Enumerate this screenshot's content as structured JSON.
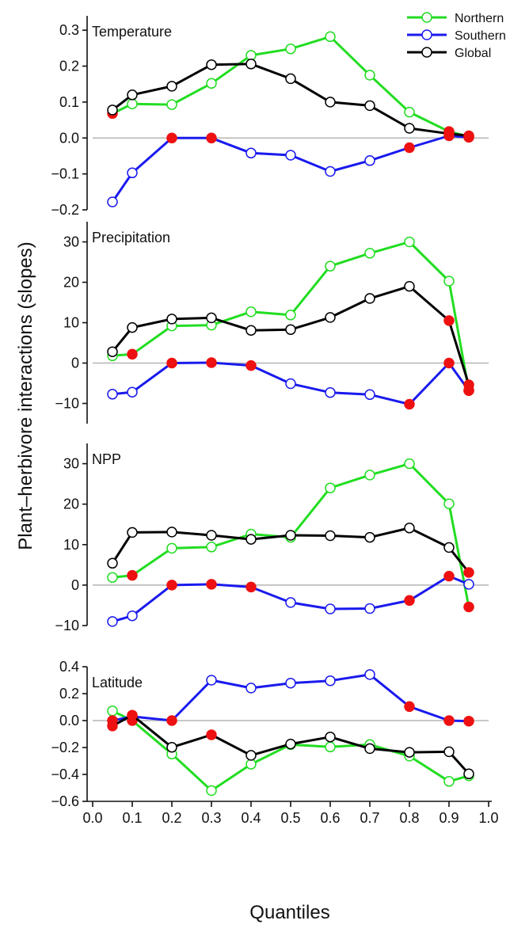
{
  "chart_data": {
    "type": "line",
    "xlabel": "Quantiles",
    "ylabel": "Plant–herbivore interactions (slopes)",
    "x": [
      0.05,
      0.1,
      0.2,
      0.3,
      0.4,
      0.5,
      0.6,
      0.7,
      0.8,
      0.9,
      0.95
    ],
    "xlim": [
      0.0,
      1.0
    ],
    "xticks": [
      "0.0",
      "0.1",
      "0.2",
      "0.3",
      "0.4",
      "0.5",
      "0.6",
      "0.7",
      "0.8",
      "0.9",
      "1.0"
    ],
    "legend": {
      "position": "top-right",
      "entries": [
        {
          "name": "Northern",
          "color": "#22dd22"
        },
        {
          "name": "Southern",
          "color": "#1a1aee"
        },
        {
          "name": "Global",
          "color": "#000000"
        }
      ]
    },
    "non_significant_marker_color": "#ee1111",
    "panels": [
      {
        "label": "Temperature",
        "ylim": [
          -0.2,
          0.34
        ],
        "yticks": [
          {
            "v": 0.3,
            "t": "0.3"
          },
          {
            "v": 0.2,
            "t": "0.2"
          },
          {
            "v": 0.1,
            "t": "0.1"
          },
          {
            "v": 0.0,
            "t": "0.0"
          },
          {
            "v": -0.1,
            "t": "−0.1"
          },
          {
            "v": -0.2,
            "t": "−0.2"
          }
        ],
        "series": [
          {
            "name": "Northern",
            "color": "#22dd22",
            "values": [
              0.068,
              0.095,
              0.093,
              0.152,
              0.23,
              0.248,
              0.282,
              0.175,
              0.072,
              0.018,
              0.004
            ],
            "significant": [
              false,
              true,
              true,
              true,
              true,
              true,
              true,
              true,
              true,
              false,
              false
            ]
          },
          {
            "name": "Southern",
            "color": "#1a1aee",
            "values": [
              -0.178,
              -0.097,
              0.0,
              0.0,
              -0.042,
              -0.048,
              -0.093,
              -0.063,
              -0.027,
              0.006,
              0.002
            ],
            "significant": [
              true,
              true,
              false,
              false,
              true,
              true,
              true,
              true,
              false,
              false,
              false
            ]
          },
          {
            "name": "Global",
            "color": "#000000",
            "values": [
              0.078,
              0.12,
              0.144,
              0.204,
              0.206,
              0.165,
              0.1,
              0.09,
              0.027,
              0.012,
              0.006
            ],
            "significant": [
              true,
              true,
              true,
              true,
              true,
              true,
              true,
              true,
              true,
              false,
              false
            ]
          }
        ]
      },
      {
        "label": "Precipitation",
        "ylim": [
          -15,
          35
        ],
        "yticks": [
          {
            "v": 30,
            "t": "30"
          },
          {
            "v": 20,
            "t": "20"
          },
          {
            "v": 10,
            "t": "10"
          },
          {
            "v": 0,
            "t": "0"
          },
          {
            "v": -10,
            "t": "−10"
          }
        ],
        "series": [
          {
            "name": "Northern",
            "color": "#22dd22",
            "values": [
              1.8,
              2.2,
              9.2,
              9.4,
              12.7,
              11.9,
              24.0,
              27.2,
              30.0,
              20.3,
              -6.8
            ],
            "significant": [
              true,
              false,
              true,
              true,
              true,
              true,
              true,
              true,
              true,
              true,
              false
            ]
          },
          {
            "name": "Southern",
            "color": "#1a1aee",
            "values": [
              -7.7,
              -7.2,
              0.0,
              0.1,
              -0.6,
              -5.1,
              -7.3,
              -7.8,
              -10.2,
              0.0,
              -6.8
            ],
            "significant": [
              true,
              true,
              false,
              false,
              false,
              true,
              true,
              true,
              false,
              false,
              false
            ]
          },
          {
            "name": "Global",
            "color": "#000000",
            "values": [
              2.8,
              8.8,
              10.9,
              11.2,
              8.1,
              8.3,
              11.3,
              16.0,
              19.0,
              10.5,
              -5.4
            ],
            "significant": [
              true,
              true,
              true,
              true,
              true,
              true,
              true,
              true,
              true,
              false,
              false
            ]
          }
        ]
      },
      {
        "label": "NPP",
        "ylim": [
          -10,
          35
        ],
        "yticks": [
          {
            "v": 30,
            "t": "30"
          },
          {
            "v": 20,
            "t": "20"
          },
          {
            "v": 10,
            "t": "10"
          },
          {
            "v": 0,
            "t": "0"
          },
          {
            "v": -10,
            "t": "−10"
          }
        ],
        "series": [
          {
            "name": "Northern",
            "color": "#22dd22",
            "values": [
              1.9,
              2.4,
              9.1,
              9.4,
              12.6,
              11.8,
              24.0,
              27.2,
              30.0,
              20.1,
              -5.4
            ],
            "significant": [
              true,
              false,
              true,
              true,
              true,
              true,
              true,
              true,
              true,
              true,
              false
            ]
          },
          {
            "name": "Southern",
            "color": "#1a1aee",
            "values": [
              -9.0,
              -7.6,
              0.0,
              0.2,
              -0.5,
              -4.3,
              -5.9,
              -5.8,
              -3.8,
              2.2,
              0.2
            ],
            "significant": [
              true,
              true,
              false,
              false,
              false,
              true,
              true,
              true,
              false,
              false,
              true
            ]
          },
          {
            "name": "Global",
            "color": "#000000",
            "values": [
              5.4,
              13.0,
              13.1,
              12.3,
              11.3,
              12.3,
              12.2,
              11.8,
              14.1,
              9.3,
              3.1
            ],
            "significant": [
              true,
              true,
              true,
              true,
              true,
              true,
              true,
              true,
              true,
              true,
              false
            ]
          }
        ]
      },
      {
        "label": "Latitude",
        "ylim": [
          -0.6,
          0.4
        ],
        "yticks": [
          {
            "v": 0.4,
            "t": "0.4"
          },
          {
            "v": 0.2,
            "t": "0.2"
          },
          {
            "v": 0.0,
            "t": "0.0"
          },
          {
            "v": -0.2,
            "t": "−0.2"
          },
          {
            "v": -0.4,
            "t": "−0.4"
          },
          {
            "v": -0.6,
            "t": "−0.6"
          }
        ],
        "series": [
          {
            "name": "Northern",
            "color": "#22dd22",
            "values": [
              0.072,
              0.0,
              -0.248,
              -0.52,
              -0.324,
              -0.178,
              -0.196,
              -0.178,
              -0.264,
              -0.452,
              -0.41
            ],
            "significant": [
              true,
              false,
              true,
              true,
              true,
              true,
              true,
              true,
              true,
              true,
              true
            ]
          },
          {
            "name": "Southern",
            "color": "#1a1aee",
            "values": [
              0.0,
              0.03,
              0.0,
              0.3,
              0.242,
              0.278,
              0.296,
              0.342,
              0.104,
              0.0,
              -0.004
            ],
            "significant": [
              false,
              false,
              false,
              true,
              true,
              true,
              true,
              true,
              false,
              false,
              false
            ]
          },
          {
            "name": "Global",
            "color": "#000000",
            "values": [
              -0.04,
              0.04,
              -0.198,
              -0.106,
              -0.258,
              -0.174,
              -0.122,
              -0.208,
              -0.236,
              -0.232,
              -0.396
            ],
            "significant": [
              false,
              false,
              true,
              false,
              true,
              true,
              true,
              true,
              true,
              true,
              true
            ]
          }
        ]
      }
    ]
  }
}
